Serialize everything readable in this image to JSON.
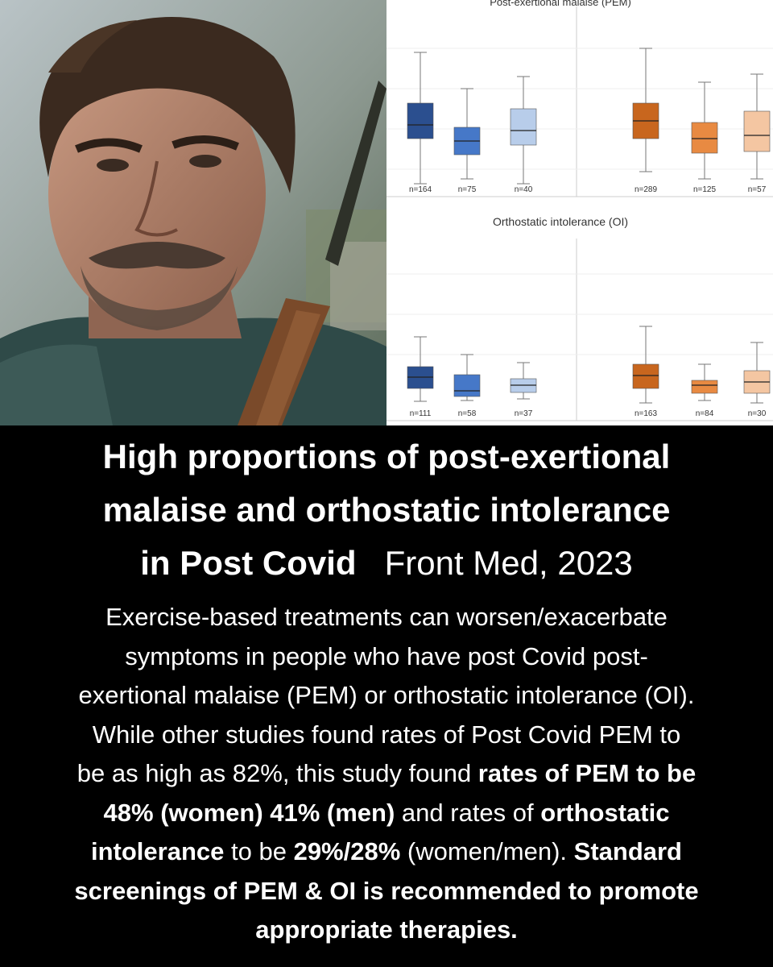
{
  "pem_chart": {
    "title": "Post-exertional malaise (PEM)",
    "left_panel": {
      "color": "#2b4f8f",
      "boxes": [
        {
          "label": "n=164",
          "min": 65,
          "q1": 128,
          "median": 155,
          "q3": 172,
          "max": 228,
          "fill": "#2b4f8f"
        },
        {
          "label": "n=75",
          "min": 110,
          "q1": 158,
          "median": 175,
          "q3": 192,
          "max": 222,
          "fill": "#4678c8"
        },
        {
          "label": "n=40",
          "min": 95,
          "q1": 135,
          "median": 162,
          "q3": 180,
          "max": 228,
          "fill": "#b8cdea"
        }
      ]
    },
    "right_panel": {
      "color": "#c8661e",
      "boxes": [
        {
          "label": "n=289",
          "min": 60,
          "q1": 128,
          "median": 150,
          "q3": 172,
          "max": 213,
          "fill": "#c8661e"
        },
        {
          "label": "n=125",
          "min": 102,
          "q1": 152,
          "median": 172,
          "q3": 190,
          "max": 222,
          "fill": "#e88a42"
        },
        {
          "label": "n=57",
          "min": 92,
          "q1": 138,
          "median": 168,
          "q3": 188,
          "max": 222,
          "fill": "#f4c6a2"
        }
      ]
    }
  },
  "oi_chart": {
    "title": "Orthostatic intolerance (OI)",
    "left_panel": {
      "color": "#2b4f8f",
      "boxes": [
        {
          "label": "n=111",
          "min": 418,
          "q1": 455,
          "median": 468,
          "q3": 482,
          "max": 498,
          "fill": "#2b4f8f"
        },
        {
          "label": "n=58",
          "min": 440,
          "q1": 465,
          "median": 485,
          "q3": 492,
          "max": 497,
          "fill": "#4678c8"
        },
        {
          "label": "n=37",
          "min": 450,
          "q1": 470,
          "median": 478,
          "q3": 487,
          "max": 495,
          "fill": "#b8cdea"
        }
      ]
    },
    "right_panel": {
      "color": "#c8661e",
      "boxes": [
        {
          "label": "n=163",
          "min": 405,
          "q1": 452,
          "median": 466,
          "q3": 482,
          "max": 500,
          "fill": "#c8661e"
        },
        {
          "label": "n=84",
          "min": 452,
          "q1": 472,
          "median": 478,
          "q3": 488,
          "max": 497,
          "fill": "#e88a42"
        },
        {
          "label": "n=30",
          "min": 425,
          "q1": 460,
          "median": 474,
          "q3": 488,
          "max": 500,
          "fill": "#f4c6a2"
        }
      ]
    }
  },
  "headline": {
    "line1": "High proportions of post-exertional",
    "line2": "malaise and orthostatic intolerance",
    "line3_bold": "in Post Covid",
    "line3_source": "Front Med, 2023"
  },
  "body": {
    "line1": "Exercise-based treatments can worsen/exacerbate",
    "line2": "symptoms in people who have post Covid post-",
    "line3": "exertional malaise (PEM) or orthostatic intolerance (OI).",
    "line4": "While other studies found rates of Post Covid PEM to",
    "line5_a": "be as high as 82%, this study found ",
    "line5_b": "rates of PEM to be",
    "line6_a": "48% (women) 41% (men)",
    "line6_b": " and rates of ",
    "line6_c": "orthostatic",
    "line7_a": "intolerance",
    "line7_b": " to be ",
    "line7_c": "29%/28%",
    "line7_d": " (women/men). ",
    "line7_e": "Standard",
    "line8": "screenings of PEM & OI is recommended to promote",
    "line9": "appropriate therapies."
  }
}
